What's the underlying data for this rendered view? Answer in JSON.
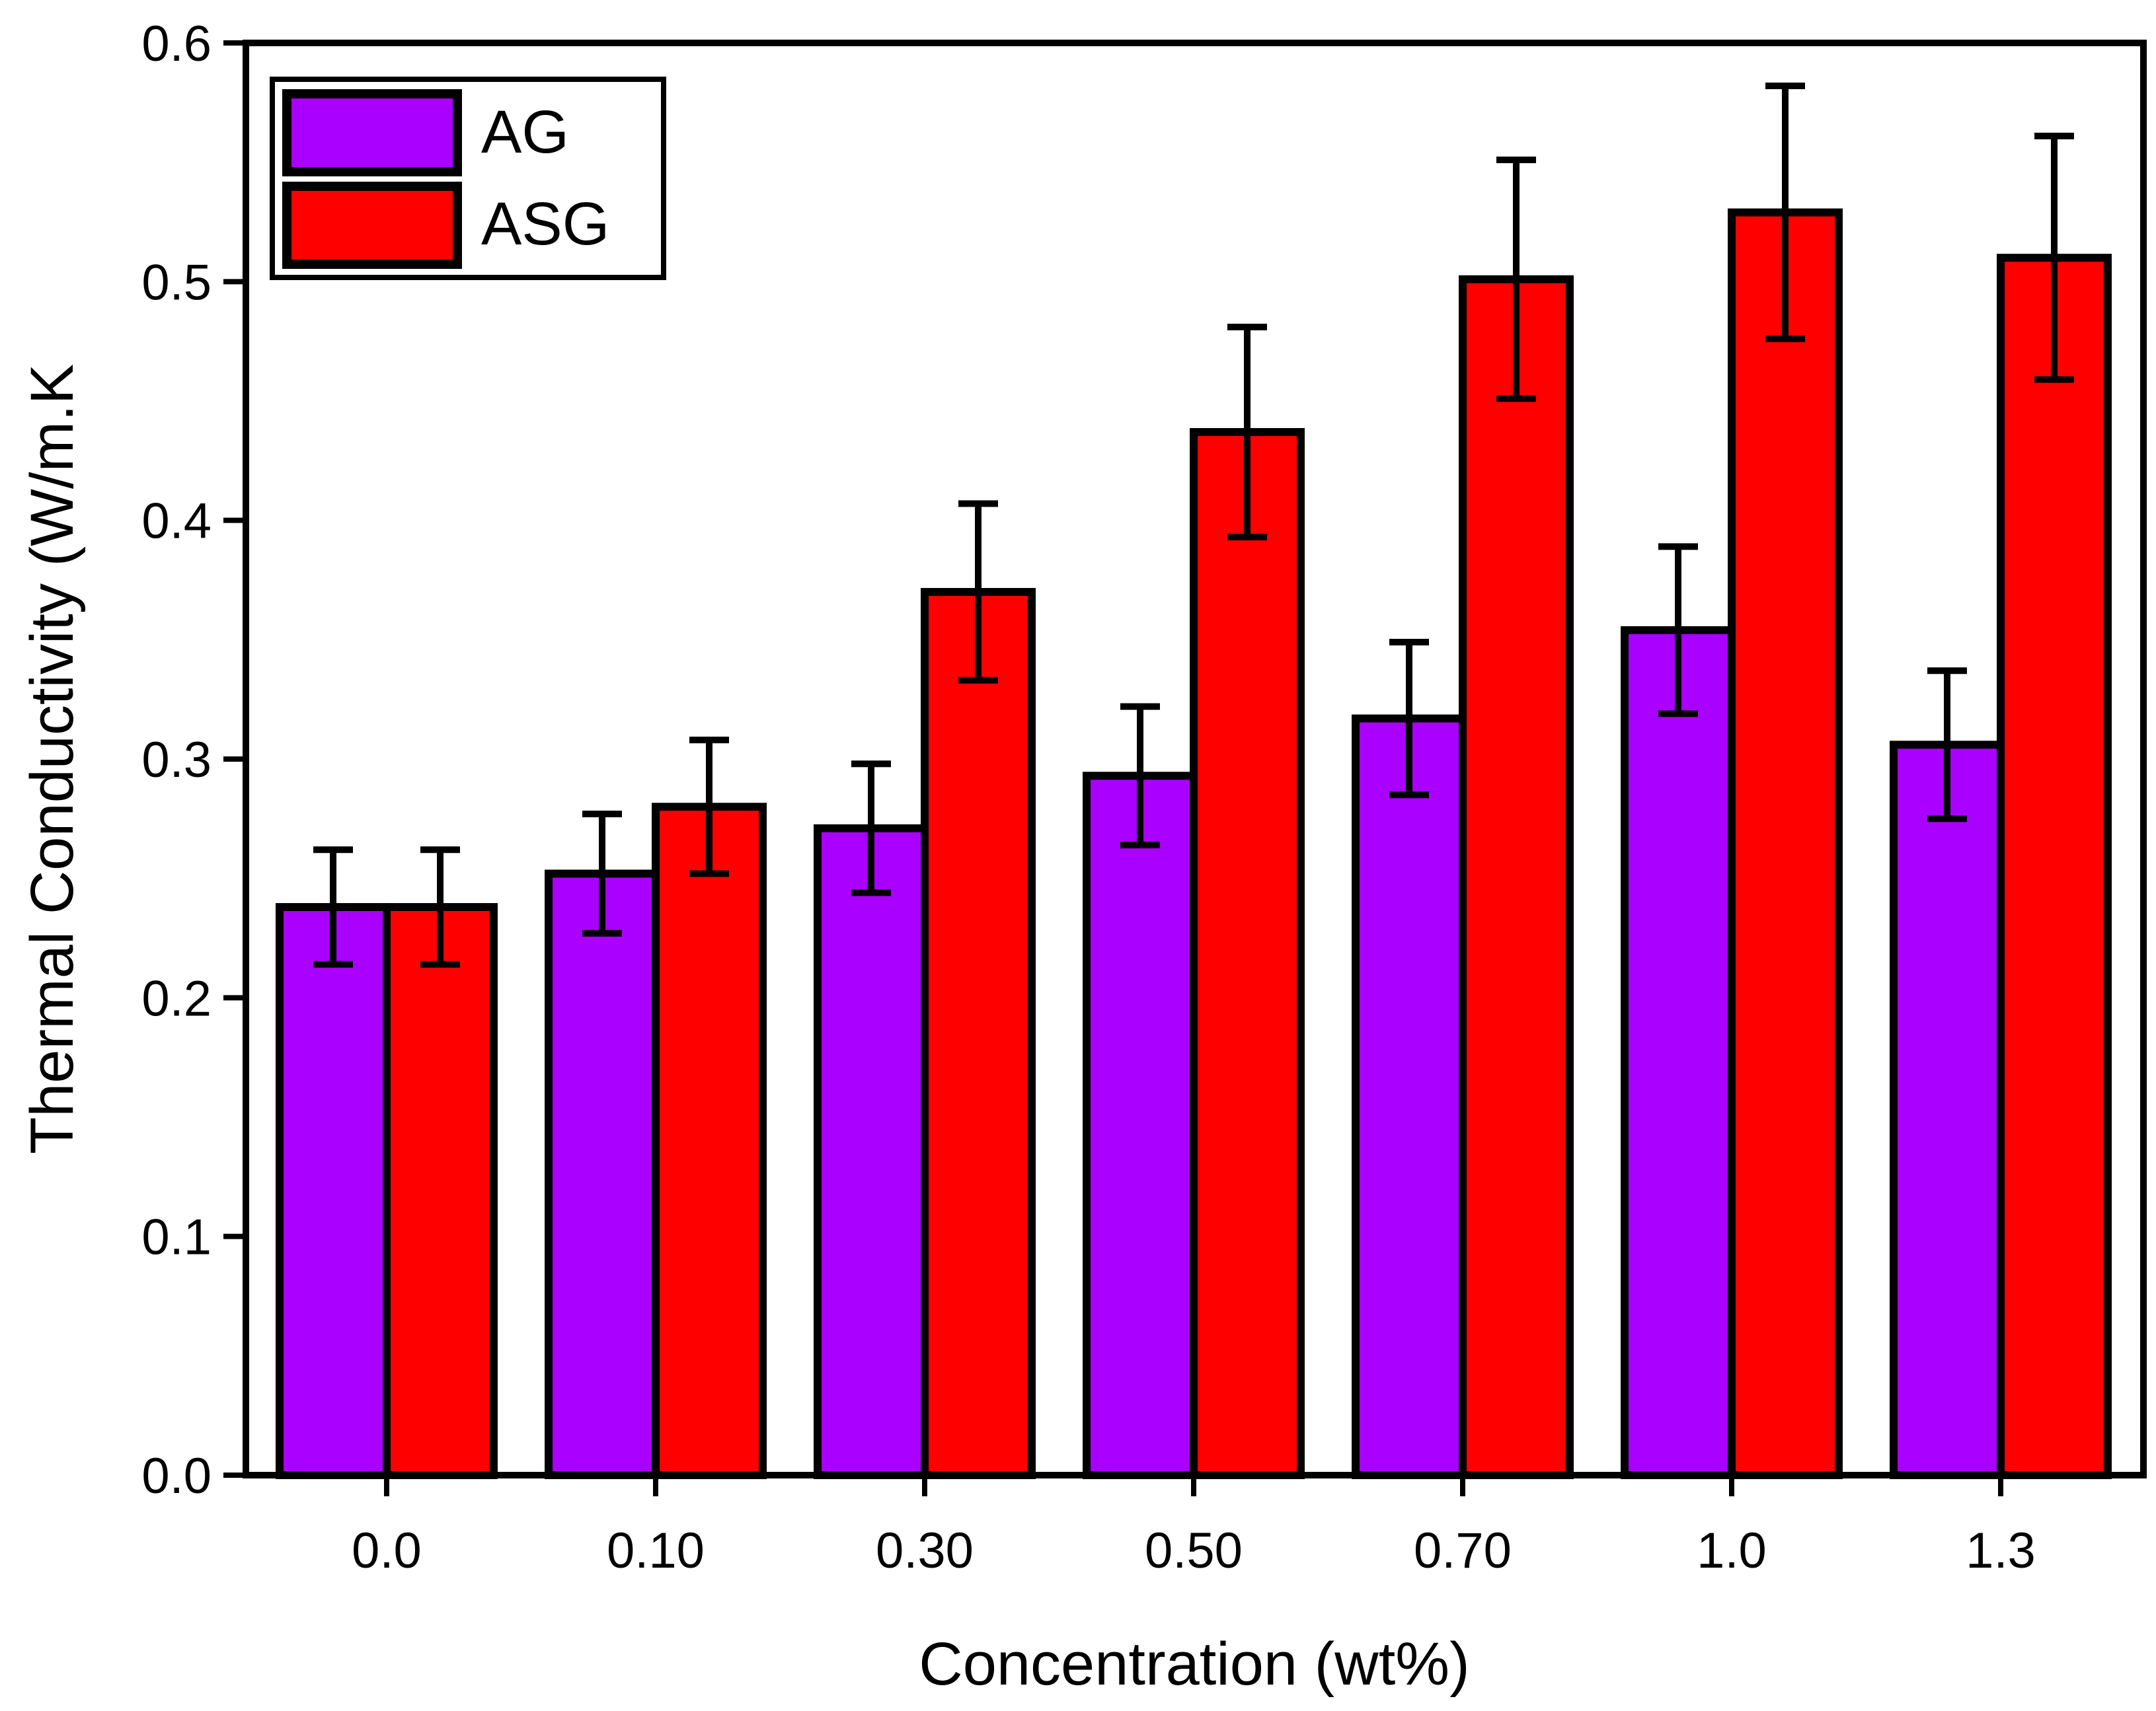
{
  "chart_data": {
    "type": "bar",
    "xlabel": "Concentration (wt%)",
    "ylabel": "Thermal Conductivity (W/m.K",
    "categories": [
      "0.0",
      "0.10",
      "0.30",
      "0.50",
      "0.70",
      "1.0",
      "1.3"
    ],
    "ylim": [
      0.0,
      0.6
    ],
    "yticks": [
      "0.0",
      "0.1",
      "0.2",
      "0.3",
      "0.4",
      "0.5",
      "0.6"
    ],
    "grid": false,
    "legend_position": "top-left",
    "error_bars": true,
    "series": [
      {
        "name": "AG",
        "color": "#aa00ff",
        "values": [
          0.238,
          0.252,
          0.271,
          0.293,
          0.317,
          0.354,
          0.306
        ],
        "errors": [
          0.024,
          0.025,
          0.027,
          0.029,
          0.032,
          0.035,
          0.031
        ]
      },
      {
        "name": "ASG",
        "color": "#ff0000",
        "values": [
          0.238,
          0.28,
          0.37,
          0.437,
          0.501,
          0.529,
          0.51
        ],
        "errors": [
          0.024,
          0.028,
          0.037,
          0.044,
          0.05,
          0.053,
          0.051
        ]
      }
    ]
  }
}
